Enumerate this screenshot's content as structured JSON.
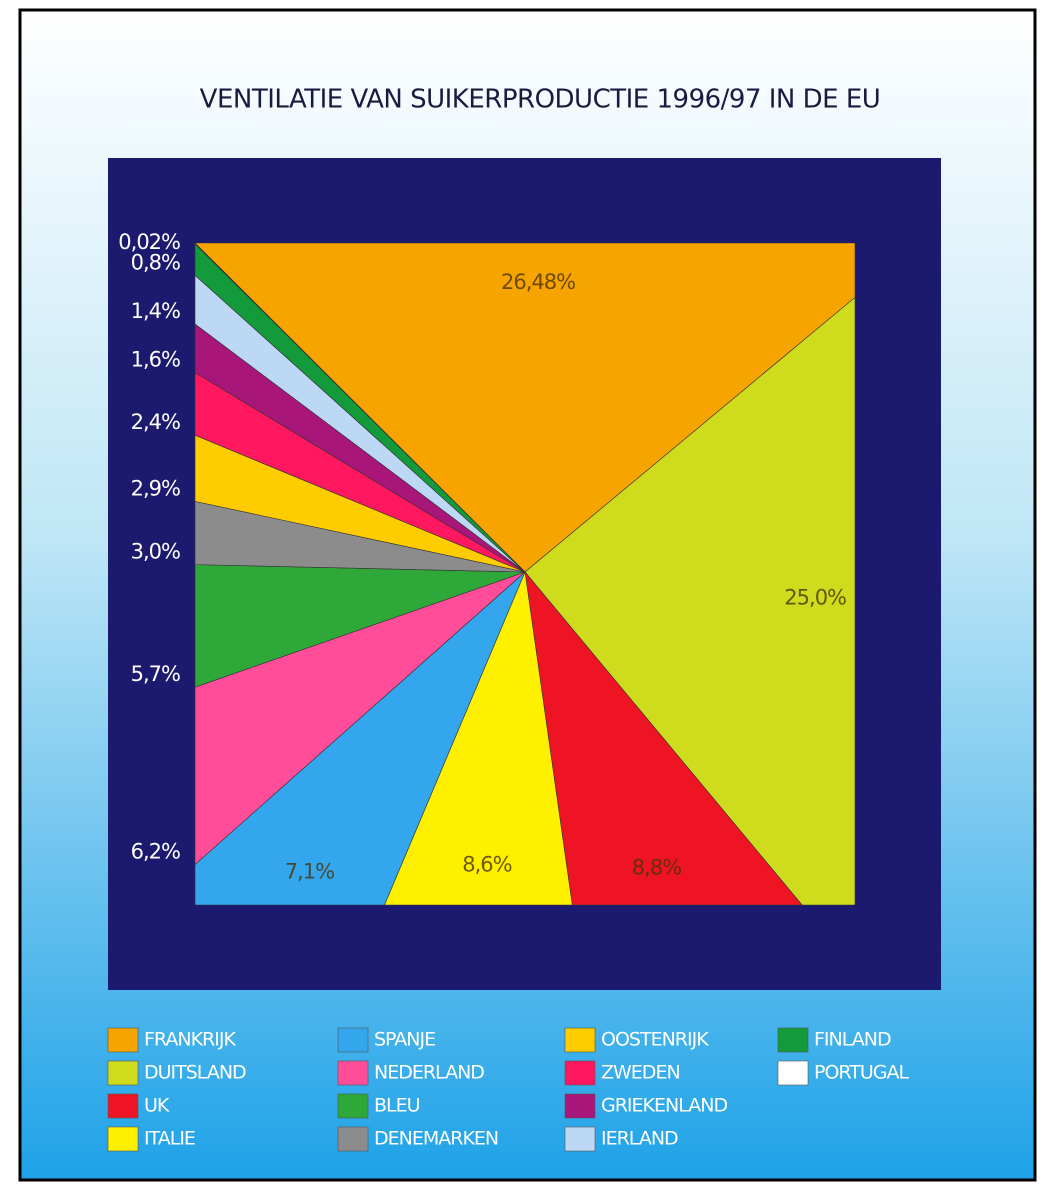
{
  "chart_data": {
    "type": "pie",
    "title": "VENTILATIE VAN SUIKERPRODUCTIE 1996/97 IN DE EU",
    "categories": [
      "FRANKRIJK",
      "DUITSLAND",
      "UK",
      "ITALIE",
      "SPANJE",
      "NEDERLAND",
      "BLEU",
      "DENEMARKEN",
      "OOSTENRIJK",
      "ZWEDEN",
      "GRIEKENLAND",
      "IERLAND",
      "FINLAND",
      "PORTUGAL"
    ],
    "values": [
      26.48,
      25.0,
      8.8,
      8.6,
      7.1,
      6.2,
      5.7,
      3.0,
      2.9,
      2.4,
      1.6,
      1.4,
      0.8,
      0.02
    ],
    "value_labels": [
      "26,48%",
      "25,0%",
      "8,8%",
      "8,6%",
      "7,1%",
      "6,2%",
      "5,7%",
      "3,0%",
      "2,9%",
      "2,4%",
      "1,6%",
      "1,4%",
      "0,8%",
      "0,02%"
    ],
    "colors": [
      "#f7a400",
      "#cfdc1e",
      "#ee1424",
      "#fff000",
      "#33a6ee",
      "#ff4d9a",
      "#2fa83a",
      "#8c8c8c",
      "#ffcc00",
      "#ff1860",
      "#a8167a",
      "#bcd8f4",
      "#139a3a",
      "#ffffff"
    ]
  }
}
